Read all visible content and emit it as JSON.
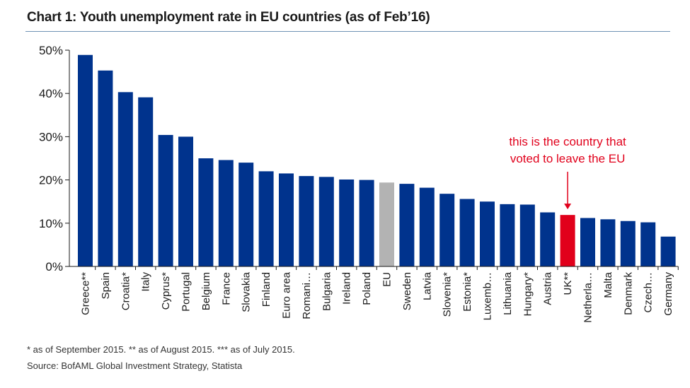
{
  "colors": {
    "bar": "#00338d",
    "eu_bar": "#b3b3b3",
    "highlight_bar": "#e1001b",
    "annotation": "#e1001b",
    "title_rule": "#6f93b5"
  },
  "chart_data": {
    "type": "bar",
    "title": "Chart 1:  Youth unemployment rate in EU countries (as of Feb’16)",
    "xlabel": "",
    "ylabel": "",
    "ylim": [
      0,
      50
    ],
    "yticks": [
      {
        "value": 0,
        "label": "0%"
      },
      {
        "value": 10,
        "label": "10%"
      },
      {
        "value": 20,
        "label": "20%"
      },
      {
        "value": 30,
        "label": "30%"
      },
      {
        "value": 40,
        "label": "40%"
      },
      {
        "value": 50,
        "label": "50%"
      }
    ],
    "grid": false,
    "categories": [
      "Greece**",
      "Spain",
      "Croatia*",
      "Italy",
      "Cyprus*",
      "Portugal",
      "Belgium",
      "France",
      "Slovakia",
      "Finland",
      "Euro area",
      "Romani…",
      "Bulgaria",
      "Ireland",
      "Poland",
      "EU",
      "Sweden",
      "Latvia",
      "Slovenia*",
      "Estonia*",
      "Luxemb…",
      "Lithuania",
      "Hungary*",
      "Austria",
      "UK**",
      "Netherla…",
      "Malta",
      "Denmark",
      "Czech…",
      "Germany"
    ],
    "values": [
      48.9,
      45.3,
      40.3,
      39.1,
      30.4,
      30.0,
      25.0,
      24.6,
      24.0,
      22.0,
      21.5,
      20.9,
      20.7,
      20.1,
      20.0,
      19.4,
      19.1,
      18.2,
      16.8,
      15.6,
      15.0,
      14.4,
      14.3,
      12.5,
      11.9,
      11.2,
      10.9,
      10.5,
      10.2,
      6.9
    ],
    "highlight": {
      "EU": "eu_bar",
      "UK**": "highlight_bar"
    },
    "annotation": {
      "lines": [
        "this is the country that",
        "voted to leave the EU"
      ],
      "target": "UK**"
    }
  },
  "footnote": "* as of September 2015. ** as of August 2015. *** as of July 2015.",
  "source": "Source: BofAML Global Investment Strategy, Statista"
}
